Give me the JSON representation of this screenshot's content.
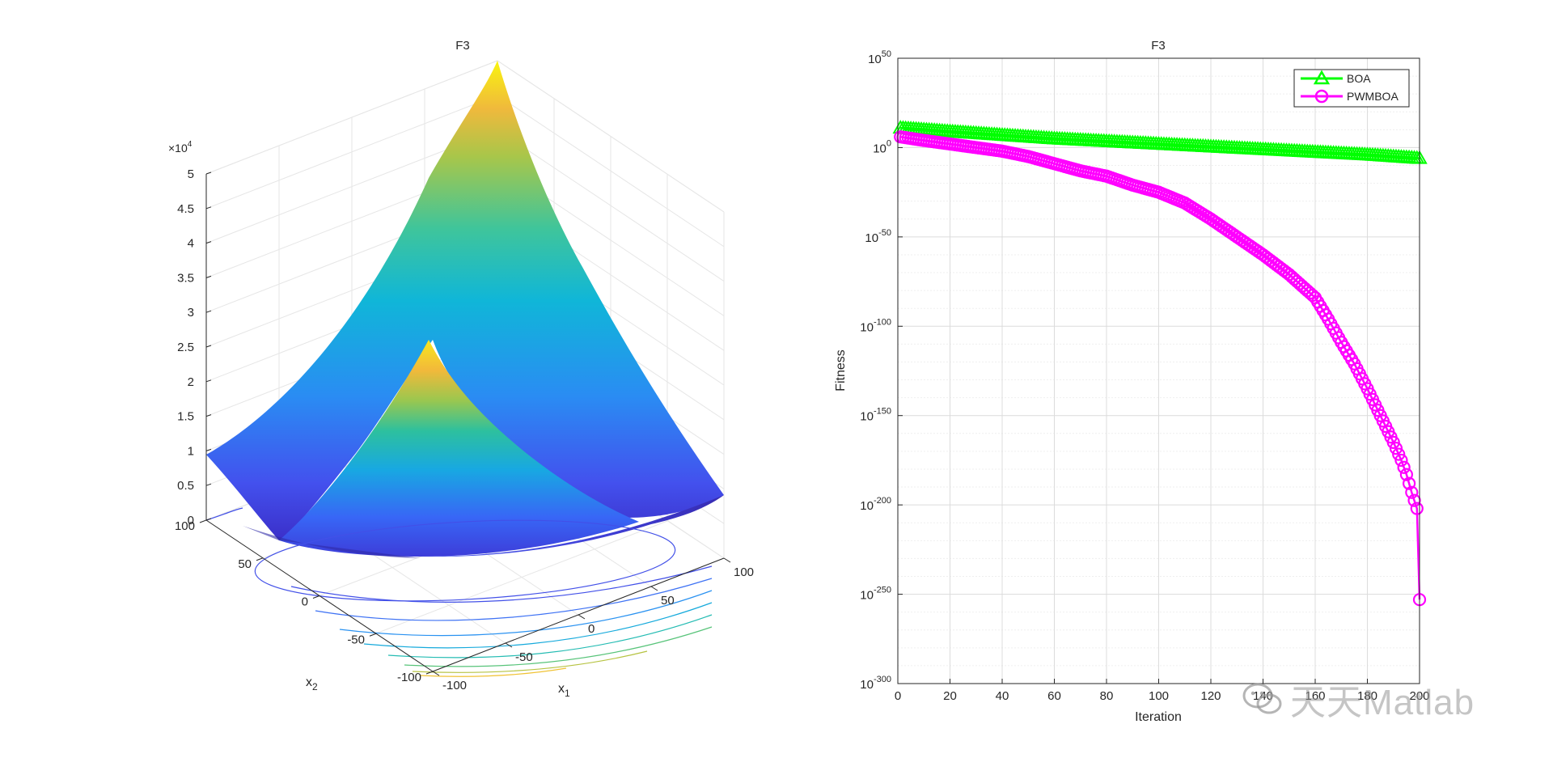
{
  "figure": {
    "left_title": "F3",
    "right_title": "F3"
  },
  "surface_plot": {
    "title": "F3",
    "z_exponent_label": "×10",
    "z_exponent_power": "4",
    "z_ticks": [
      "0",
      "0.5",
      "1",
      "1.5",
      "2",
      "2.5",
      "3",
      "3.5",
      "4",
      "4.5",
      "5"
    ],
    "x1_ticks": [
      "-100",
      "-50",
      "0",
      "50",
      "100"
    ],
    "x2_ticks": [
      "-100",
      "-50",
      "0",
      "50",
      "100"
    ],
    "x1_label": "x",
    "x1_sub": "1",
    "x2_label": "x",
    "x2_sub": "2",
    "colormap": [
      "#3e26a8",
      "#4743e8",
      "#2e87f7",
      "#14b3d6",
      "#23c2a8",
      "#7dc755",
      "#d4bb33",
      "#fbd723",
      "#f9fb0e"
    ]
  },
  "chart_data": {
    "type": "line",
    "title": "F3",
    "xlabel": "Iteration",
    "ylabel": "Fitness",
    "yscale": "log",
    "xlim": [
      0,
      200
    ],
    "ylim_exponent": [
      -300,
      50
    ],
    "x_ticks": [
      "0",
      "20",
      "40",
      "60",
      "80",
      "100",
      "120",
      "140",
      "160",
      "180",
      "200"
    ],
    "y_ticks_exponent": [
      "50",
      "0",
      "-50",
      "-100",
      "-150",
      "-200",
      "-250",
      "-300"
    ],
    "y_tick_base": "10",
    "legend_position": "top-right",
    "series": [
      {
        "name": "BOA",
        "color": "#00ff00",
        "marker": "triangle",
        "x": [
          1,
          20,
          40,
          60,
          80,
          100,
          120,
          140,
          160,
          180,
          200
        ],
        "log10_values": [
          11,
          9,
          7,
          5,
          3.5,
          2,
          0.5,
          -1,
          -2.5,
          -4,
          -6
        ]
      },
      {
        "name": "PWMBOA",
        "color": "#ff00ff",
        "marker": "circle",
        "x": [
          1,
          10,
          20,
          30,
          40,
          50,
          60,
          70,
          80,
          90,
          100,
          110,
          120,
          130,
          140,
          150,
          160,
          165,
          170,
          175,
          180,
          185,
          190,
          193,
          195,
          197,
          199,
          200
        ],
        "log10_values": [
          6,
          4,
          2,
          0,
          -2,
          -5,
          -9,
          -13,
          -16,
          -21,
          -25,
          -31,
          -40,
          -50,
          -60,
          -71,
          -84,
          -96,
          -109,
          -121,
          -135,
          -150,
          -165,
          -175,
          -183,
          -193,
          -202,
          -253
        ]
      }
    ]
  },
  "watermark": {
    "text": "天天Matlab"
  }
}
